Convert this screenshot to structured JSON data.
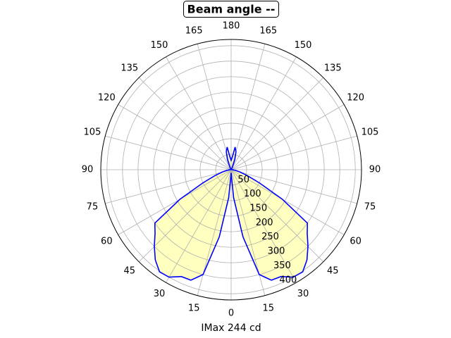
{
  "chart_data": {
    "type": "polar",
    "title": "Beam angle --",
    "xlabel": "IMax 244 cd",
    "theta": [
      0,
      5,
      10,
      15,
      20,
      25,
      30,
      35,
      40,
      45,
      50,
      55,
      60,
      65,
      70,
      75,
      80,
      85,
      90,
      95,
      100,
      105,
      110,
      115,
      120,
      125,
      130,
      135,
      140,
      145,
      150,
      155,
      160,
      165,
      170,
      175,
      180,
      185,
      190,
      195,
      200,
      205,
      210,
      215,
      220,
      225,
      230,
      235,
      240,
      245,
      250,
      255,
      260,
      265,
      270,
      275,
      280,
      285,
      290,
      295,
      300,
      305,
      310,
      315,
      320,
      325,
      330,
      335,
      340,
      345,
      350,
      355
    ],
    "r": [
      10,
      90,
      220,
      350,
      379,
      380,
      400,
      402,
      380,
      350,
      320,
      300,
      190,
      100,
      55,
      30,
      15,
      8,
      3,
      2,
      2,
      2,
      2,
      2,
      2,
      2,
      2,
      2,
      2,
      2,
      2,
      10,
      35,
      60,
      74,
      40,
      30,
      40,
      74,
      60,
      35,
      10,
      2,
      2,
      2,
      2,
      2,
      2,
      2,
      2,
      2,
      2,
      2,
      2,
      3,
      8,
      15,
      30,
      55,
      100,
      190,
      300,
      320,
      350,
      380,
      402,
      400,
      380,
      379,
      350,
      220,
      90
    ],
    "color": "#0000ff",
    "fill": "#ffffbf",
    "rlim": [
      0,
      420
    ],
    "rticks": [
      50,
      100,
      150,
      200,
      250,
      300,
      350,
      400
    ],
    "thetaticks": [
      0,
      15,
      30,
      45,
      60,
      75,
      90,
      105,
      120,
      135,
      150,
      165,
      180,
      {
        "value": 195,
        "label": "165"
      },
      {
        "value": 210,
        "label": "150"
      },
      {
        "value": 225,
        "label": "135"
      },
      {
        "value": 240,
        "label": "120"
      },
      {
        "value": 255,
        "label": "105"
      },
      {
        "value": 270,
        "label": "90"
      },
      {
        "value": 285,
        "label": "75"
      },
      {
        "value": 300,
        "label": "60"
      },
      {
        "value": 315,
        "label": "45"
      },
      {
        "value": 330,
        "label": "30"
      },
      {
        "value": 345,
        "label": "15"
      }
    ],
    "grid": true
  }
}
